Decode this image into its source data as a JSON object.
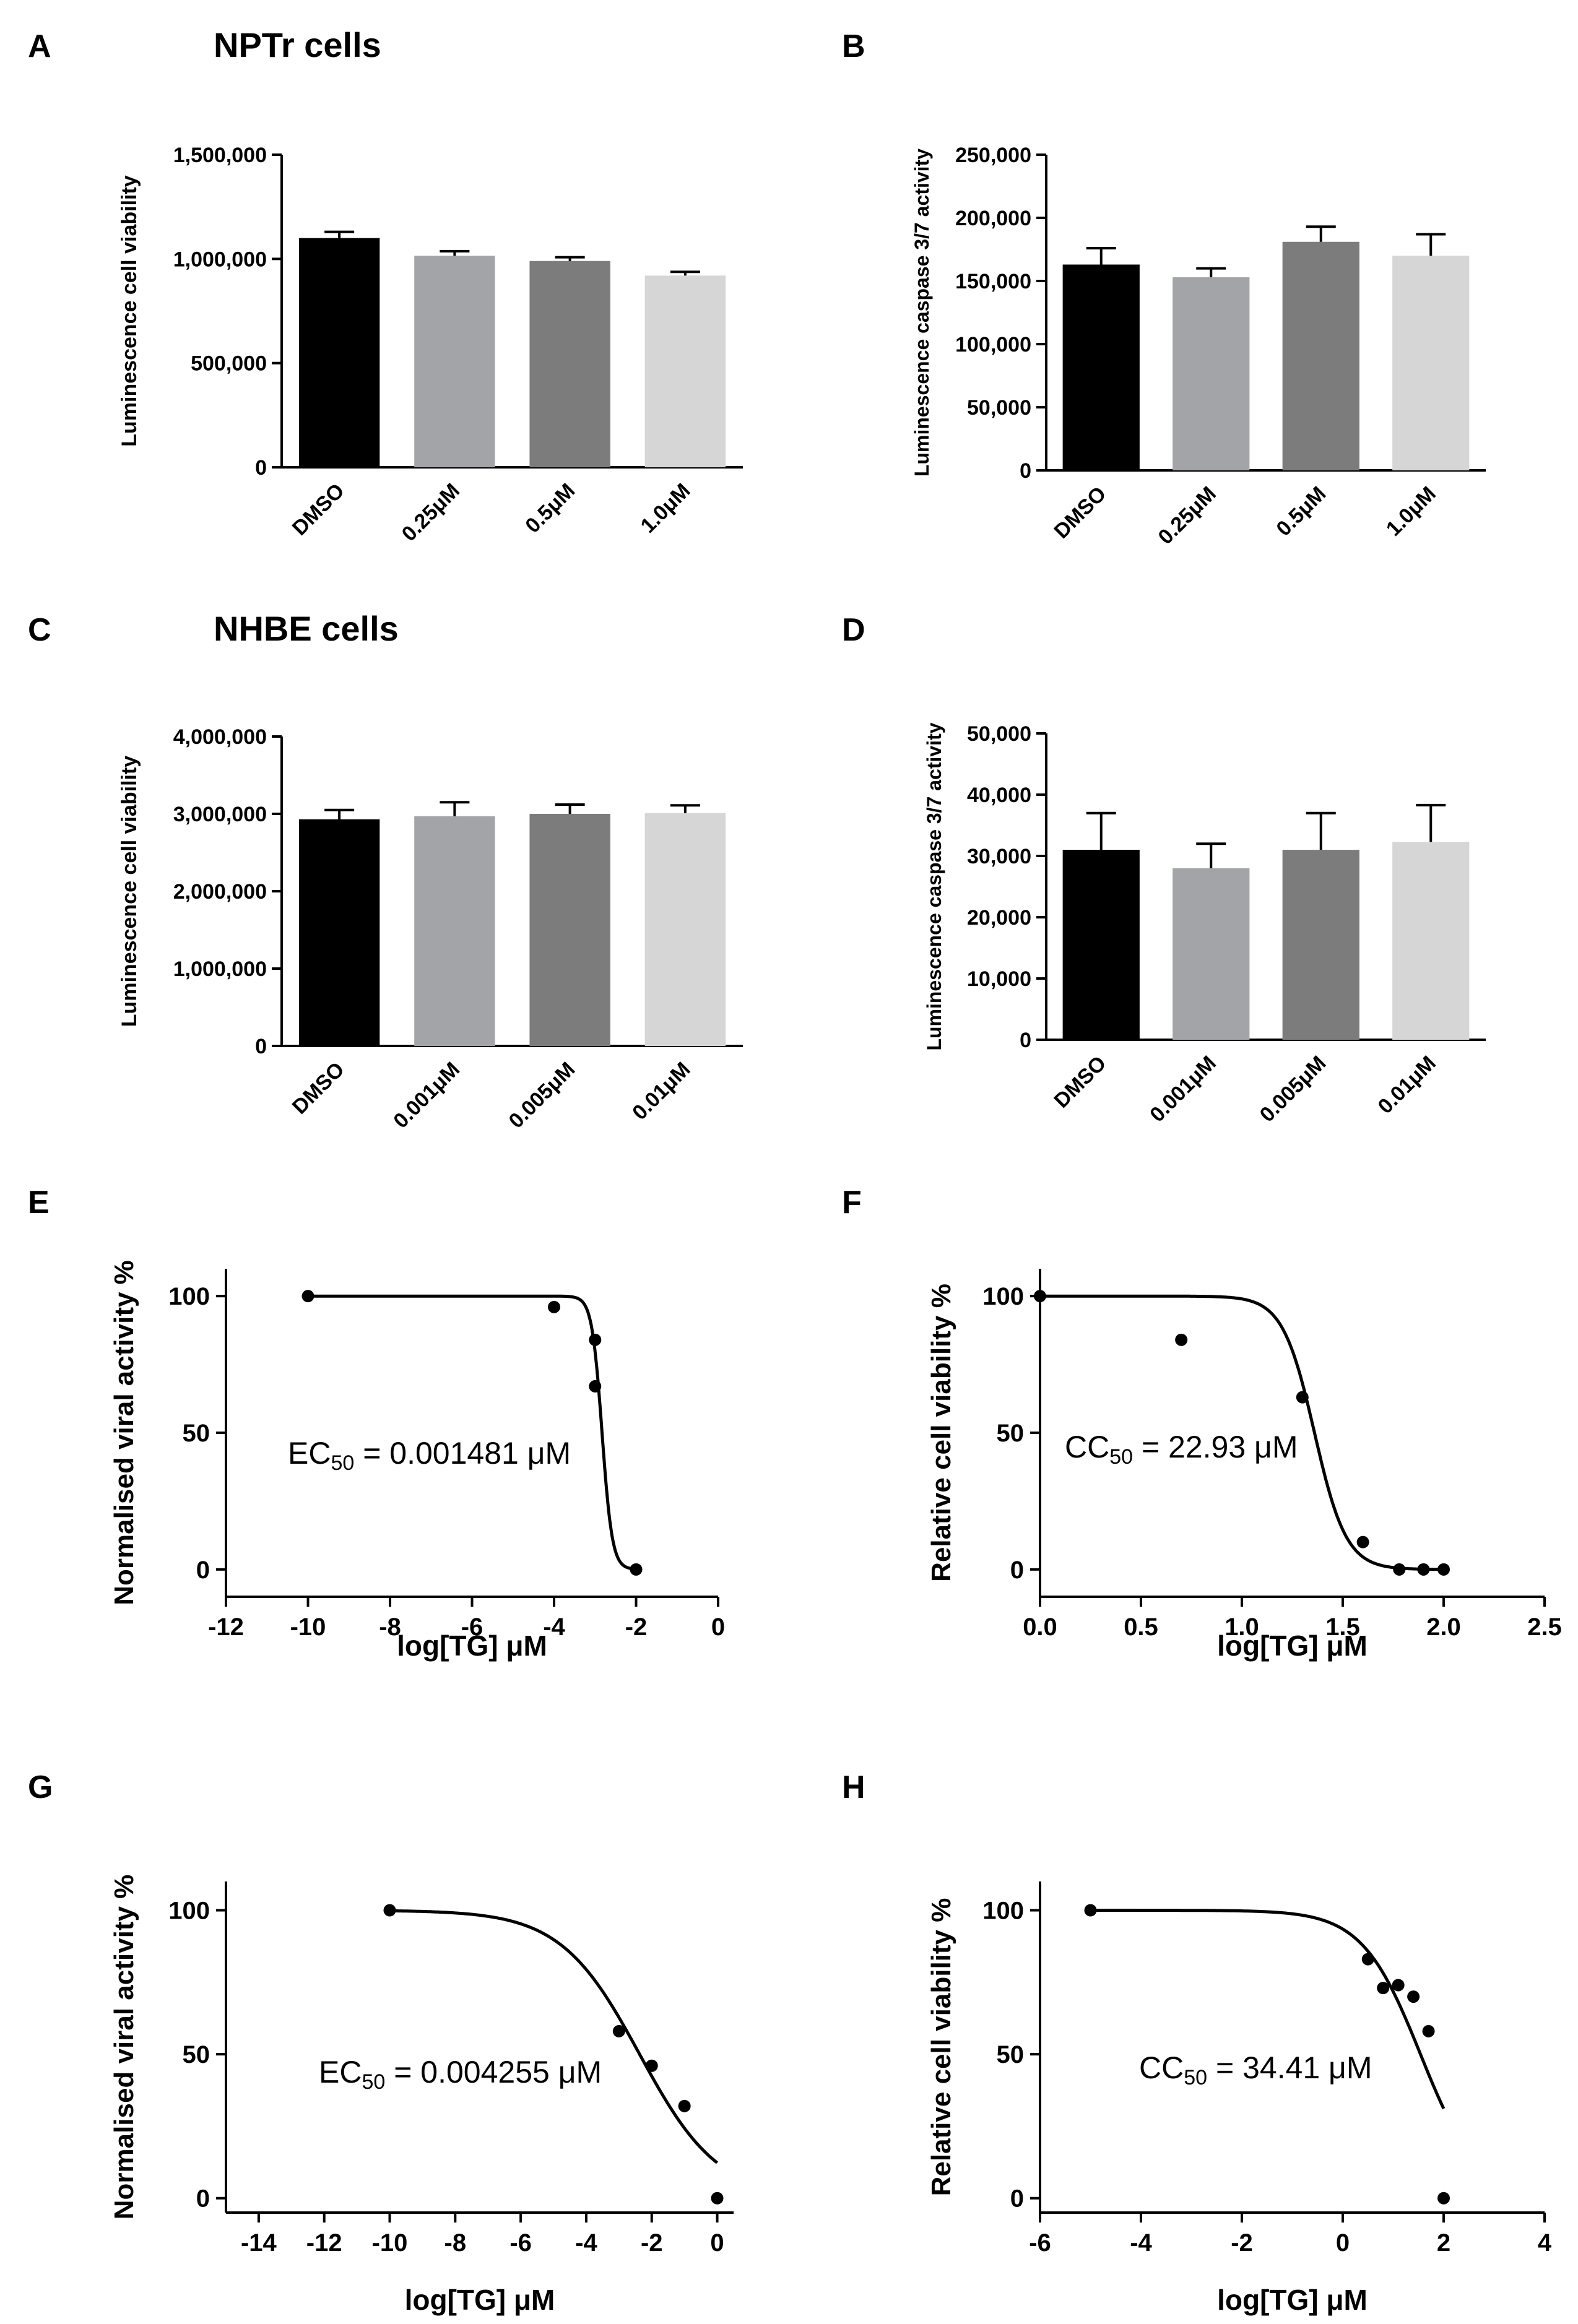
{
  "headings": {
    "nptr": "NPTr cells",
    "nhbe": "NHBE cells"
  },
  "chart_data": [
    {
      "panel": "A",
      "type": "bar",
      "title": "",
      "ylabel": "Luminescence cell viability",
      "xlabel": "",
      "categories": [
        "DMSO",
        "0.25μM",
        "0.5μM",
        "1.0μM"
      ],
      "values": [
        1100000,
        1015000,
        990000,
        920000
      ],
      "errors": [
        30000,
        22000,
        18000,
        18000
      ],
      "colors": [
        "#000000",
        "#a3a4a8",
        "#7c7c7c",
        "#d6d6d6"
      ],
      "ylim": [
        0,
        1500000
      ],
      "yticks": [
        0,
        500000,
        1000000,
        1500000
      ],
      "ytick_labels": [
        "0",
        "500,000",
        "1,000,000",
        "1,500,000"
      ]
    },
    {
      "panel": "B",
      "type": "bar",
      "title": "",
      "ylabel": "Luminescence caspase 3/7 activity",
      "xlabel": "",
      "categories": [
        "DMSO",
        "0.25μM",
        "0.5μM",
        "1.0μM"
      ],
      "values": [
        163000,
        153000,
        181000,
        170000
      ],
      "errors": [
        13000,
        7000,
        12000,
        17000
      ],
      "colors": [
        "#000000",
        "#a3a4a8",
        "#7c7c7c",
        "#d6d6d6"
      ],
      "ylim": [
        0,
        250000
      ],
      "yticks": [
        0,
        50000,
        100000,
        150000,
        200000,
        250000
      ],
      "ytick_labels": [
        "0",
        "50,000",
        "100,000",
        "150,000",
        "200,000",
        "250,000"
      ]
    },
    {
      "panel": "C",
      "type": "bar",
      "title": "",
      "ylabel": "Luminescence cell viability",
      "xlabel": "",
      "categories": [
        "DMSO",
        "0.001μM",
        "0.005μM",
        "0.01μM"
      ],
      "values": [
        2930000,
        2970000,
        3000000,
        3010000
      ],
      "errors": [
        120000,
        180000,
        120000,
        100000
      ],
      "colors": [
        "#000000",
        "#a3a4a8",
        "#7c7c7c",
        "#d6d6d6"
      ],
      "ylim": [
        0,
        4000000
      ],
      "yticks": [
        0,
        1000000,
        2000000,
        3000000,
        4000000
      ],
      "ytick_labels": [
        "0",
        "1,000,000",
        "2,000,000",
        "3,000,000",
        "4,000,000"
      ]
    },
    {
      "panel": "D",
      "type": "bar",
      "title": "",
      "ylabel": "Luminescence caspase 3/7 activity",
      "xlabel": "",
      "categories": [
        "DMSO",
        "0.001μM",
        "0.005μM",
        "0.01μM"
      ],
      "values": [
        31000,
        28000,
        31000,
        32300
      ],
      "errors": [
        6000,
        4000,
        6000,
        6000
      ],
      "colors": [
        "#000000",
        "#a3a4a8",
        "#7c7c7c",
        "#d6d6d6"
      ],
      "ylim": [
        0,
        50000
      ],
      "yticks": [
        0,
        10000,
        20000,
        30000,
        40000,
        50000
      ],
      "ytick_labels": [
        "0",
        "10,000",
        "20,000",
        "30,000",
        "40,000",
        "50,000"
      ]
    },
    {
      "panel": "E",
      "type": "scatter",
      "title": "",
      "ylabel": "Normalised viral activity %",
      "xlabel": "log[TG] μM",
      "points": [
        [
          -10,
          100
        ],
        [
          -4,
          96
        ],
        [
          -3,
          84
        ],
        [
          -3,
          67
        ],
        [
          -2,
          0
        ]
      ],
      "curve": {
        "top": 100,
        "bottom": 0,
        "log_mid": -2.83,
        "slope": -3.5,
        "x_range": [
          -10,
          -2
        ]
      },
      "ec_prefix": "EC",
      "ec_sub": "50",
      "ec_value": " = 0.001481 μM",
      "xlim": [
        -12,
        0
      ],
      "ylim": [
        -10,
        110
      ],
      "xticks": [
        -12,
        -10,
        -8,
        -6,
        -4,
        -2,
        0
      ],
      "yticks": [
        0,
        50,
        100
      ],
      "xtick_labels": [
        "-12",
        "-10",
        "-8",
        "-6",
        "-4",
        "-2",
        "0"
      ],
      "ytick_labels": [
        "0",
        "50",
        "100"
      ]
    },
    {
      "panel": "F",
      "type": "scatter",
      "title": "",
      "ylabel": "Relative cell viability %",
      "xlabel": "log[TG] μM",
      "points": [
        [
          0,
          100
        ],
        [
          0.7,
          84
        ],
        [
          1.3,
          63
        ],
        [
          1.6,
          10
        ],
        [
          1.78,
          0
        ],
        [
          1.9,
          0
        ],
        [
          2.0,
          0
        ]
      ],
      "curve": {
        "top": 100,
        "bottom": 0,
        "log_mid": 1.36,
        "slope": -5.5,
        "x_range": [
          0,
          2.0
        ]
      },
      "ec_prefix": "CC",
      "ec_sub": "50",
      "ec_value": " = 22.93 μM",
      "xlim": [
        0,
        2.5
      ],
      "ylim": [
        -10,
        110
      ],
      "xticks": [
        0,
        0.5,
        1.0,
        1.5,
        2.0,
        2.5
      ],
      "yticks": [
        0,
        50,
        100
      ],
      "xtick_labels": [
        "0.0",
        "0.5",
        "1.0",
        "1.5",
        "2.0",
        "2.5"
      ],
      "ytick_labels": [
        "0",
        "50",
        "100"
      ]
    },
    {
      "panel": "G",
      "type": "scatter",
      "title": "",
      "ylabel": "Normalised viral activity %",
      "xlabel": "log[TG] μM",
      "points": [
        [
          -10,
          100
        ],
        [
          -3,
          58
        ],
        [
          -2,
          46
        ],
        [
          -1,
          32
        ],
        [
          0,
          0
        ]
      ],
      "curve": {
        "top": 100,
        "bottom": 0,
        "log_mid": -2.37,
        "slope": -0.36,
        "x_range": [
          -10,
          0
        ]
      },
      "ec_prefix": "EC",
      "ec_sub": "50",
      "ec_value": " = 0.004255 μM",
      "xlim": [
        -15,
        0.5
      ],
      "ylim": [
        -5,
        110
      ],
      "xticks": [
        -14,
        -12,
        -10,
        -8,
        -6,
        -4,
        -2,
        0
      ],
      "yticks": [
        0,
        50,
        100
      ],
      "xtick_labels": [
        "-14",
        "-12",
        "-10",
        "-8",
        "-6",
        "-4",
        "-2",
        "0"
      ],
      "ytick_labels": [
        "0",
        "50",
        "100"
      ]
    },
    {
      "panel": "H",
      "type": "scatter",
      "title": "",
      "ylabel": "Relative cell viability %",
      "xlabel": "log[TG] μM",
      "points": [
        [
          -5,
          100
        ],
        [
          0.5,
          83
        ],
        [
          0.8,
          73
        ],
        [
          1.1,
          74
        ],
        [
          1.4,
          70
        ],
        [
          1.7,
          58
        ],
        [
          2.0,
          0
        ]
      ],
      "curve": {
        "top": 100,
        "bottom": 0,
        "log_mid": 1.54,
        "slope": -0.75,
        "x_range": [
          -5,
          2
        ]
      },
      "ec_prefix": "CC",
      "ec_sub": "50",
      "ec_value": " = 34.41 μM",
      "xlim": [
        -6,
        4
      ],
      "ylim": [
        -5,
        110
      ],
      "xticks": [
        -6,
        -4,
        -2,
        0,
        2,
        4
      ],
      "yticks": [
        0,
        50,
        100
      ],
      "xtick_labels": [
        "-6",
        "-4",
        "-2",
        "0",
        "2",
        "4"
      ],
      "ytick_labels": [
        "0",
        "50",
        "100"
      ]
    }
  ]
}
